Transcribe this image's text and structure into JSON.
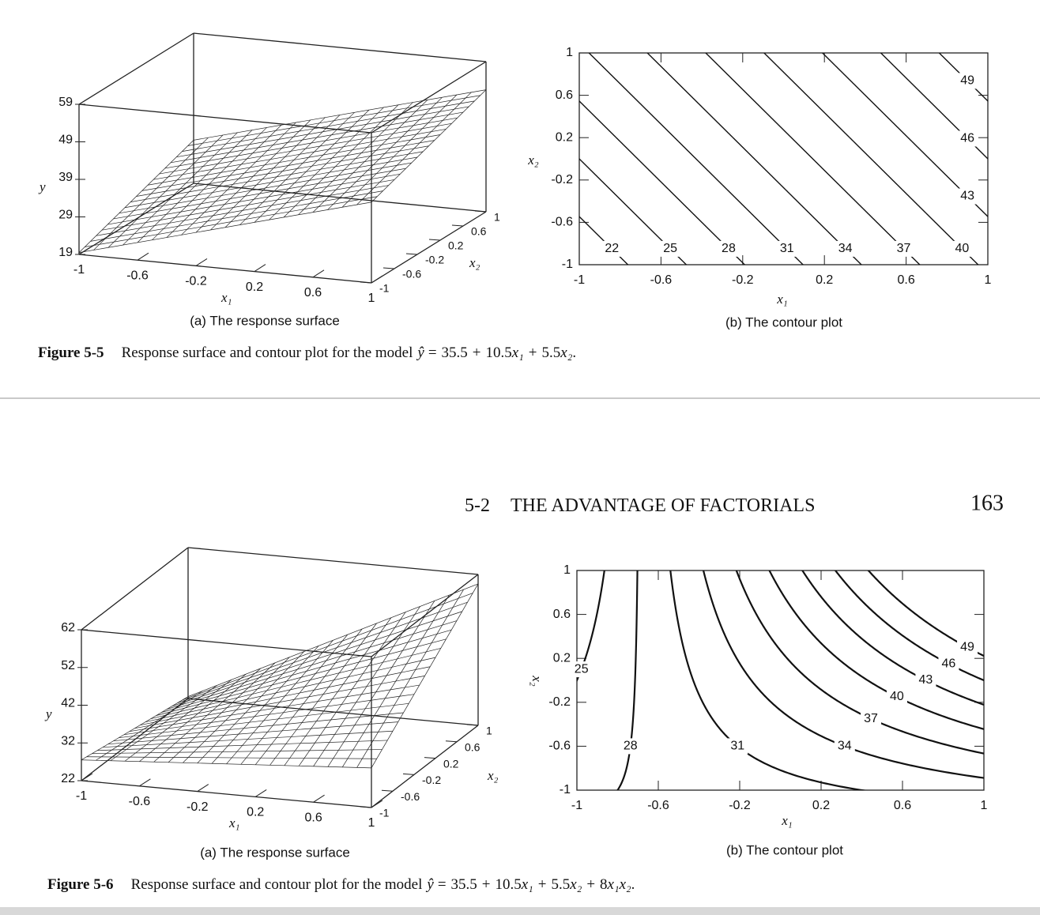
{
  "header": {
    "section": "5-2",
    "title": "THE ADVANTAGE OF FACTORIALS",
    "page": "163"
  },
  "figures": [
    {
      "label": "Figure 5-5",
      "caption": "Response surface and contour plot for the model",
      "model": {
        "lhs": "ŷ",
        "eq": "=",
        "op": "+",
        "end": ".",
        "intercept": 35.5,
        "terms": [
          {
            "coef": 10.5,
            "var": "x₁",
            "factors": [
              0
            ]
          },
          {
            "coef": 5.5,
            "var": "x₂",
            "factors": [
              1
            ]
          }
        ]
      },
      "surface": {
        "caption": "(a) The response surface",
        "y_label": "y",
        "x1_label": "x₁",
        "x2_label": "x₂",
        "ylim": [
          19,
          59
        ],
        "yticks": [
          19,
          29,
          39,
          49,
          59
        ],
        "x1lim": [
          -1,
          1
        ],
        "x1ticks": [
          -1,
          -0.6,
          -0.2,
          0.2,
          0.6,
          1
        ],
        "x2lim": [
          -1,
          1
        ],
        "x2ticks": [
          -1,
          -0.6,
          -0.2,
          0.2,
          0.6,
          1
        ]
      },
      "contour": {
        "caption": "(b) The contour plot",
        "x_label": "x₁",
        "y_label": "x₂",
        "xlim": [
          -1,
          1
        ],
        "xticks": [
          -1,
          -0.6,
          -0.2,
          0.2,
          0.6,
          1
        ],
        "ylim": [
          -1,
          1
        ],
        "yticks": [
          -1,
          -0.6,
          -0.2,
          0.2,
          0.6,
          1
        ],
        "levels": [
          22,
          25,
          28,
          31,
          34,
          37,
          40,
          43,
          46,
          49
        ]
      }
    },
    {
      "label": "Figure 5-6",
      "caption": "Response surface and contour plot for the model",
      "model": {
        "lhs": "ŷ",
        "eq": "=",
        "op": "+",
        "end": ".",
        "intercept": 35.5,
        "terms": [
          {
            "coef": 10.5,
            "var": "x₁",
            "factors": [
              0
            ]
          },
          {
            "coef": 5.5,
            "var": "x₂",
            "factors": [
              1
            ]
          },
          {
            "coef": 8,
            "var": "x₁x₂",
            "factors": [
              0,
              1
            ]
          }
        ]
      },
      "surface": {
        "caption": "(a) The response surface",
        "y_label": "y",
        "x1_label": "x₁",
        "x2_label": "x₂",
        "ylim": [
          22,
          62
        ],
        "yticks": [
          22,
          32,
          42,
          52,
          62
        ],
        "x1lim": [
          -1,
          1
        ],
        "x1ticks": [
          -1,
          -0.6,
          -0.2,
          0.2,
          0.6,
          1
        ],
        "x2lim": [
          -1,
          1
        ],
        "x2ticks": [
          -1,
          -0.6,
          -0.2,
          0.2,
          0.6,
          1
        ]
      },
      "contour": {
        "caption": "(b) The contour plot",
        "x_label": "x₁",
        "y_label": "x₂",
        "xlim": [
          -1,
          1
        ],
        "xticks": [
          -1,
          -0.6,
          -0.2,
          0.2,
          0.6,
          1
        ],
        "ylim": [
          -1,
          1
        ],
        "yticks": [
          -1,
          -0.6,
          -0.2,
          0.2,
          0.6,
          1
        ],
        "levels": [
          25,
          28,
          31,
          34,
          37,
          40,
          43,
          46,
          49
        ]
      }
    }
  ]
}
